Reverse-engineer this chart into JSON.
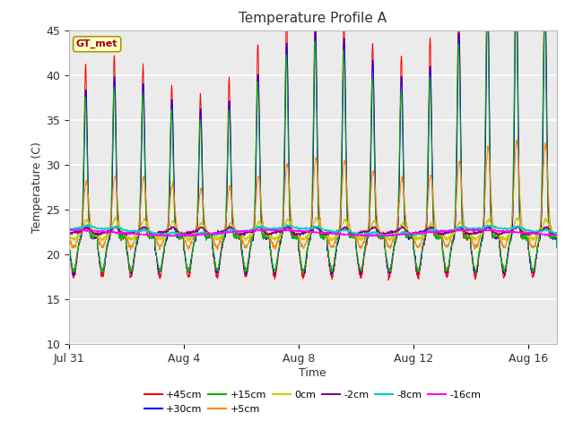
{
  "title": "Temperature Profile A",
  "xlabel": "Time",
  "ylabel": "Temperature (C)",
  "ylim": [
    10,
    45
  ],
  "yticks": [
    10,
    15,
    20,
    25,
    30,
    35,
    40,
    45
  ],
  "xlim_start": 0,
  "xlim_end": 17.0,
  "xtick_positions": [
    0,
    4,
    8,
    12,
    16
  ],
  "xtick_labels": [
    "Jul 31",
    "Aug 4",
    "Aug 8",
    "Aug 12",
    "Aug 16"
  ],
  "series": [
    {
      "label": "+45cm",
      "color": "#FF0000"
    },
    {
      "label": "+30cm",
      "color": "#0000FF"
    },
    {
      "label": "+15cm",
      "color": "#00BB00"
    },
    {
      "label": "+5cm",
      "color": "#FF8800"
    },
    {
      "label": "0cm",
      "color": "#CCCC00"
    },
    {
      "label": "-2cm",
      "color": "#880088"
    },
    {
      "label": "-8cm",
      "color": "#00CCCC"
    },
    {
      "label": "-16cm",
      "color": "#FF00FF"
    }
  ],
  "legend_box_facecolor": "#FFFFCC",
  "legend_box_edge": "#AA9900",
  "gt_met_text_color": "#AA0000",
  "fig_facecolor": "#FFFFFF",
  "plot_bg_color": "#EBEBEB",
  "grid_color": "#FFFFFF"
}
